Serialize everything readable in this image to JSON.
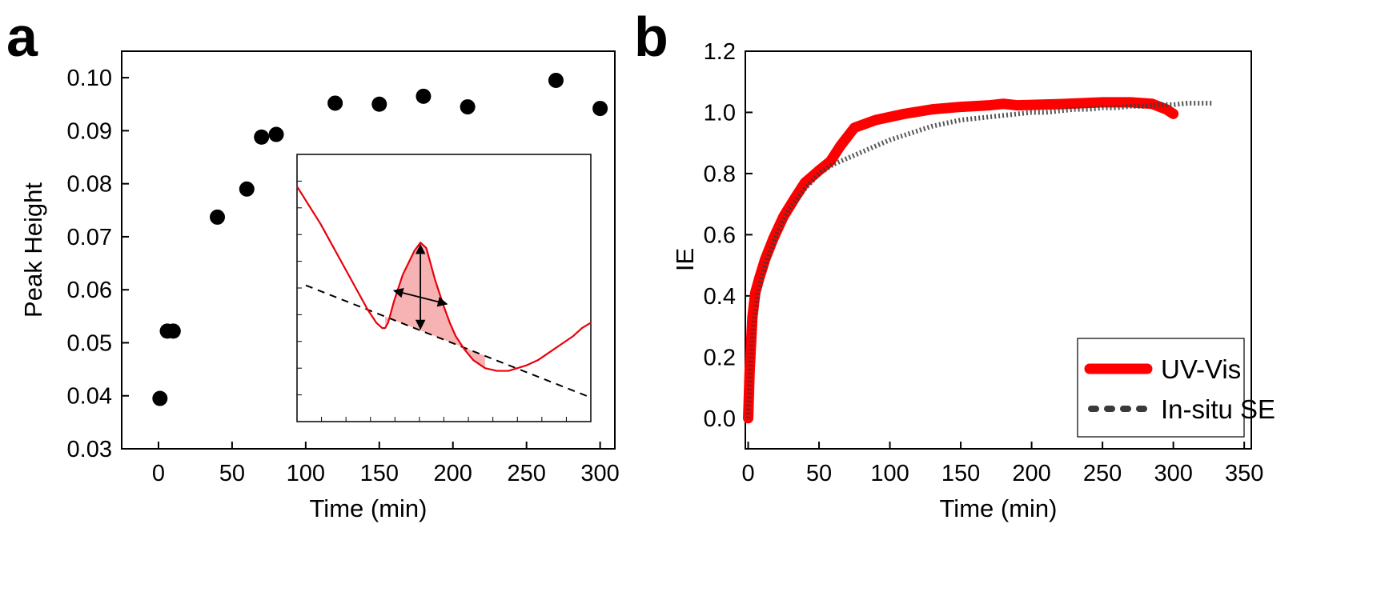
{
  "chart_data": [
    {
      "panel_label": "a",
      "type": "scatter",
      "xlabel": "Time (min)",
      "ylabel": "Peak Height",
      "xlim": [
        -25,
        310
      ],
      "ylim": [
        0.03,
        0.105
      ],
      "xticks": [
        "0",
        "50",
        "100",
        "150",
        "200",
        "250",
        "300"
      ],
      "yticks": [
        "0.03",
        "0.04",
        "0.05",
        "0.06",
        "0.07",
        "0.08",
        "0.09",
        "0.10"
      ],
      "x": [
        1,
        6,
        10,
        40,
        60,
        70,
        80,
        120,
        150,
        180,
        210,
        270,
        300
      ],
      "y": [
        0.0395,
        0.0522,
        0.0522,
        0.0737,
        0.079,
        0.0888,
        0.0893,
        0.0952,
        0.095,
        0.0965,
        0.0945,
        0.0995,
        0.0942
      ],
      "inset": {
        "type": "line",
        "curve_color": "#e8000b",
        "fill_color": "#f7b3b3",
        "baseline_style": "dashed",
        "x": [
          0,
          0.04,
          0.08,
          0.12,
          0.16,
          0.2,
          0.24,
          0.27,
          0.29,
          0.3,
          0.31,
          0.33,
          0.36,
          0.4,
          0.42,
          0.44,
          0.45,
          0.47,
          0.5,
          0.52,
          0.54,
          0.57,
          0.6,
          0.64,
          0.68,
          0.72,
          0.75,
          0.78,
          0.82,
          0.86,
          0.9,
          0.94,
          0.97,
          1.0
        ],
        "y": [
          0.88,
          0.81,
          0.74,
          0.66,
          0.58,
          0.5,
          0.42,
          0.37,
          0.35,
          0.35,
          0.37,
          0.45,
          0.55,
          0.64,
          0.67,
          0.65,
          0.61,
          0.53,
          0.43,
          0.37,
          0.32,
          0.27,
          0.23,
          0.2,
          0.19,
          0.19,
          0.2,
          0.21,
          0.23,
          0.26,
          0.29,
          0.32,
          0.35,
          0.37
        ],
        "baseline_start": [
          0.03,
          0.51
        ],
        "baseline_end": [
          1.0,
          0.09
        ],
        "peak_range": [
          0.3,
          0.64
        ]
      }
    },
    {
      "panel_label": "b",
      "type": "line",
      "xlabel": "Time (min)",
      "ylabel": "IE",
      "xlim": [
        -2,
        355
      ],
      "ylim": [
        -0.1,
        1.2
      ],
      "xticks": [
        "0",
        "50",
        "100",
        "150",
        "200",
        "250",
        "300",
        "350"
      ],
      "yticks": [
        "0.0",
        "0.2",
        "0.4",
        "0.6",
        "0.8",
        "1.0",
        "1.2"
      ],
      "legend_position": "bottom-right",
      "series": [
        {
          "name": "UV-Vis",
          "color": "#ff0000",
          "style": "thick-solid",
          "x": [
            0,
            1,
            3,
            5,
            8,
            12,
            18,
            25,
            33,
            40,
            45,
            50,
            58,
            65,
            75,
            90,
            110,
            130,
            150,
            170,
            180,
            190,
            220,
            250,
            270,
            285,
            295,
            300
          ],
          "y": [
            0.0,
            0.15,
            0.33,
            0.41,
            0.46,
            0.52,
            0.59,
            0.66,
            0.72,
            0.77,
            0.79,
            0.81,
            0.84,
            0.89,
            0.95,
            0.975,
            0.995,
            1.01,
            1.018,
            1.023,
            1.028,
            1.023,
            1.027,
            1.033,
            1.033,
            1.028,
            1.01,
            0.995
          ]
        },
        {
          "name": "In-situ SE",
          "color": "#3a3a3a",
          "style": "dotted",
          "x": [
            0,
            2,
            4,
            7,
            10,
            15,
            20,
            25,
            30,
            40,
            50,
            60,
            75,
            90,
            100,
            110,
            120,
            130,
            140,
            150,
            160,
            170,
            180,
            190,
            200,
            210,
            220,
            230,
            240,
            250,
            260,
            270,
            280,
            290,
            300,
            310,
            320,
            328
          ],
          "y": [
            0.0,
            0.2,
            0.32,
            0.41,
            0.47,
            0.54,
            0.6,
            0.65,
            0.69,
            0.75,
            0.8,
            0.83,
            0.86,
            0.89,
            0.91,
            0.925,
            0.94,
            0.955,
            0.965,
            0.975,
            0.98,
            0.985,
            0.99,
            0.995,
            1.0,
            1.0,
            1.005,
            1.01,
            1.01,
            1.015,
            1.015,
            1.02,
            1.02,
            1.025,
            1.025,
            1.03,
            1.03,
            1.03
          ]
        }
      ]
    }
  ]
}
